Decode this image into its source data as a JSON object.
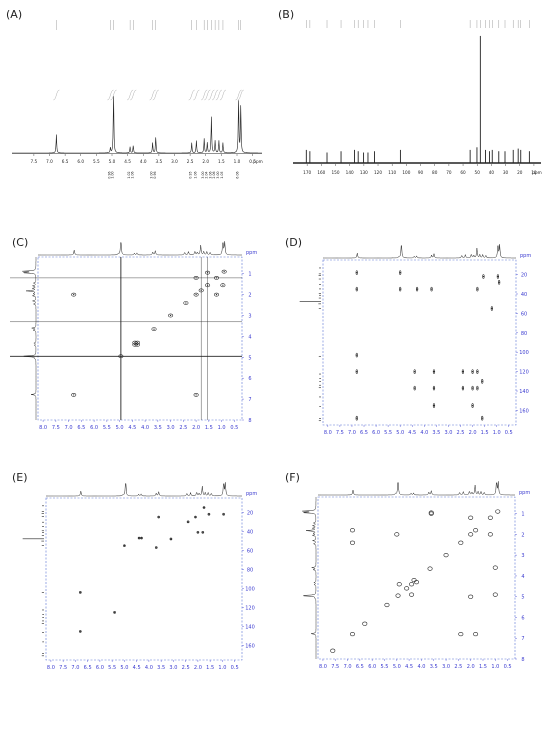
{
  "panels": [
    {
      "label": "(A)",
      "type": "1D-1H"
    },
    {
      "label": "(B)",
      "type": "1D-13C"
    },
    {
      "label": "(C)",
      "type": "2D-COSY"
    },
    {
      "label": "(D)",
      "type": "2D-HMBC"
    },
    {
      "label": "(E)",
      "type": "2D-HSQC"
    },
    {
      "label": "(F)",
      "type": "2D-NOESY"
    }
  ],
  "colors": {
    "ink": "#222222",
    "axis_blue": "#3a3ad0",
    "frame_dash": "#5a74d6"
  },
  "chart_data": [
    {
      "panel": "(A)",
      "type": "line",
      "title": "",
      "xlabel": "ppm",
      "x_reversed": true,
      "xlim": [
        8.2,
        0.2
      ],
      "x_ticks": [
        "7.5",
        "7.0",
        "6.5",
        "6.0",
        "5.5",
        "5.0",
        "4.5",
        "4.0",
        "3.5",
        "3.0",
        "2.5",
        "2.0",
        "1.5",
        "1.0",
        "0.5"
      ],
      "peaks": [
        {
          "ppm": 6.78,
          "height": 0.18
        },
        {
          "ppm": 5.05,
          "height": 0.05
        },
        {
          "ppm": 4.95,
          "height": 0.55
        },
        {
          "ppm": 4.42,
          "height": 0.06
        },
        {
          "ppm": 4.32,
          "height": 0.07
        },
        {
          "ppm": 3.7,
          "height": 0.1
        },
        {
          "ppm": 3.6,
          "height": 0.15
        },
        {
          "ppm": 2.45,
          "height": 0.1
        },
        {
          "ppm": 2.3,
          "height": 0.12
        },
        {
          "ppm": 2.05,
          "height": 0.14
        },
        {
          "ppm": 1.95,
          "height": 0.1
        },
        {
          "ppm": 1.82,
          "height": 0.35
        },
        {
          "ppm": 1.7,
          "height": 0.12
        },
        {
          "ppm": 1.58,
          "height": 0.12
        },
        {
          "ppm": 1.45,
          "height": 0.1
        },
        {
          "ppm": 0.95,
          "height": 0.5
        },
        {
          "ppm": 0.88,
          "height": 0.45
        }
      ],
      "integrations": [
        "0.96",
        "1.00",
        "1.02",
        "1.06",
        "3.00",
        "0.96",
        "0.95",
        "1.06",
        "3.00",
        "2.04",
        "3.06",
        "2.06",
        "3.00",
        "1.05",
        "6.06"
      ]
    },
    {
      "panel": "(B)",
      "type": "line",
      "title": "",
      "xlabel": "ppm",
      "x_reversed": true,
      "xlim": [
        180,
        5
      ],
      "x_ticks": [
        "170",
        "160",
        "150",
        "140",
        "130",
        "120",
        "110",
        "100",
        "90",
        "80",
        "70",
        "60",
        "50",
        "40",
        "30",
        "20",
        "10"
      ],
      "peaks": [
        {
          "ppm": 170.6,
          "height": 0.1
        },
        {
          "ppm": 168.1,
          "height": 0.09
        },
        {
          "ppm": 156.0,
          "height": 0.08
        },
        {
          "ppm": 146.1,
          "height": 0.09
        },
        {
          "ppm": 136.6,
          "height": 0.1
        },
        {
          "ppm": 134.0,
          "height": 0.09
        },
        {
          "ppm": 130.2,
          "height": 0.08
        },
        {
          "ppm": 127.1,
          "height": 0.08
        },
        {
          "ppm": 122.5,
          "height": 0.09
        },
        {
          "ppm": 104.2,
          "height": 0.1
        },
        {
          "ppm": 55.0,
          "height": 0.1
        },
        {
          "ppm": 50.2,
          "height": 0.12
        },
        {
          "ppm": 47.8,
          "height": 0.97
        },
        {
          "ppm": 44.2,
          "height": 0.1
        },
        {
          "ppm": 41.3,
          "height": 0.09
        },
        {
          "ppm": 39.4,
          "height": 0.1
        },
        {
          "ppm": 34.8,
          "height": 0.09
        },
        {
          "ppm": 30.4,
          "height": 0.09
        },
        {
          "ppm": 24.6,
          "height": 0.1
        },
        {
          "ppm": 21.1,
          "height": 0.11
        },
        {
          "ppm": 19.3,
          "height": 0.1
        },
        {
          "ppm": 13.2,
          "height": 0.09
        }
      ]
    },
    {
      "panel": "(C)",
      "type": "scatter",
      "title": "",
      "xlabel": "",
      "ylabel": "ppm",
      "xlim": [
        8.2,
        0.2
      ],
      "ylim": [
        0.2,
        8.0
      ],
      "x_ticks": [
        "8.0",
        "7.5",
        "7.0",
        "6.5",
        "6.0",
        "5.5",
        "5.0",
        "4.5",
        "4.0",
        "3.5",
        "3.0",
        "2.5",
        "2.0",
        "1.5",
        "1.0",
        "0.5"
      ],
      "y_ticks": [
        "1",
        "2",
        "3",
        "4",
        "5",
        "6",
        "7",
        "8"
      ],
      "cross_peaks": [
        {
          "x": 6.8,
          "y": 6.8
        },
        {
          "x": 4.95,
          "y": 4.95
        },
        {
          "x": 4.4,
          "y": 4.4
        },
        {
          "x": 4.3,
          "y": 4.3
        },
        {
          "x": 3.65,
          "y": 3.65
        },
        {
          "x": 3.0,
          "y": 3.0
        },
        {
          "x": 2.4,
          "y": 2.4
        },
        {
          "x": 2.0,
          "y": 2.0
        },
        {
          "x": 1.8,
          "y": 1.8
        },
        {
          "x": 1.55,
          "y": 1.55
        },
        {
          "x": 1.2,
          "y": 1.2
        },
        {
          "x": 0.9,
          "y": 0.9
        },
        {
          "x": 4.4,
          "y": 4.3
        },
        {
          "x": 4.3,
          "y": 4.4
        },
        {
          "x": 2.0,
          "y": 1.2
        },
        {
          "x": 1.2,
          "y": 2.0
        },
        {
          "x": 6.8,
          "y": 2.0
        },
        {
          "x": 2.0,
          "y": 6.8
        },
        {
          "x": 0.95,
          "y": 1.55
        },
        {
          "x": 1.55,
          "y": 0.95
        }
      ]
    },
    {
      "panel": "(D)",
      "type": "scatter",
      "title": "",
      "xlabel": "",
      "ylabel": "ppm",
      "xlim": [
        8.2,
        0.2
      ],
      "ylim": [
        5,
        175
      ],
      "x_ticks": [
        "8.0",
        "7.5",
        "7.0",
        "6.5",
        "6.0",
        "5.5",
        "5.0",
        "4.5",
        "4.0",
        "3.5",
        "3.0",
        "2.5",
        "2.0",
        "1.5",
        "1.0",
        "0.5"
      ],
      "y_ticks": [
        "20",
        "40",
        "60",
        "80",
        "100",
        "120",
        "140",
        "160"
      ],
      "cross_peaks": [
        {
          "x": 6.8,
          "y": 18
        },
        {
          "x": 6.8,
          "y": 35
        },
        {
          "x": 6.8,
          "y": 103
        },
        {
          "x": 6.8,
          "y": 120
        },
        {
          "x": 6.8,
          "y": 168
        },
        {
          "x": 5.0,
          "y": 18
        },
        {
          "x": 5.0,
          "y": 35
        },
        {
          "x": 4.3,
          "y": 35
        },
        {
          "x": 3.7,
          "y": 35
        },
        {
          "x": 3.6,
          "y": 120
        },
        {
          "x": 3.6,
          "y": 137
        },
        {
          "x": 3.6,
          "y": 155
        },
        {
          "x": 4.4,
          "y": 120
        },
        {
          "x": 4.4,
          "y": 137
        },
        {
          "x": 2.4,
          "y": 120
        },
        {
          "x": 2.4,
          "y": 137
        },
        {
          "x": 2.0,
          "y": 120
        },
        {
          "x": 2.0,
          "y": 137
        },
        {
          "x": 2.0,
          "y": 155
        },
        {
          "x": 1.8,
          "y": 120
        },
        {
          "x": 1.8,
          "y": 137
        },
        {
          "x": 1.6,
          "y": 130
        },
        {
          "x": 1.6,
          "y": 168
        },
        {
          "x": 1.8,
          "y": 35
        },
        {
          "x": 1.55,
          "y": 22
        },
        {
          "x": 0.95,
          "y": 22
        },
        {
          "x": 0.9,
          "y": 28
        },
        {
          "x": 1.2,
          "y": 55
        }
      ]
    },
    {
      "panel": "(E)",
      "type": "scatter",
      "title": "",
      "xlabel": "",
      "ylabel": "ppm",
      "xlim": [
        8.2,
        0.2
      ],
      "ylim": [
        5,
        175
      ],
      "x_ticks": [
        "8.0",
        "7.5",
        "7.0",
        "6.5",
        "6.0",
        "5.5",
        "5.0",
        "4.5",
        "4.0",
        "3.5",
        "3.0",
        "2.5",
        "2.0",
        "1.5",
        "1.0",
        "0.5"
      ],
      "y_ticks": [
        "20",
        "40",
        "60",
        "80",
        "100",
        "120",
        "140",
        "160"
      ],
      "cross_peaks": [
        {
          "x": 6.8,
          "y": 104
        },
        {
          "x": 6.8,
          "y": 145
        },
        {
          "x": 5.4,
          "y": 125
        },
        {
          "x": 5.0,
          "y": 55
        },
        {
          "x": 4.4,
          "y": 47
        },
        {
          "x": 4.3,
          "y": 47
        },
        {
          "x": 3.7,
          "y": 57
        },
        {
          "x": 3.6,
          "y": 25
        },
        {
          "x": 3.1,
          "y": 48
        },
        {
          "x": 2.4,
          "y": 30
        },
        {
          "x": 2.0,
          "y": 41
        },
        {
          "x": 1.8,
          "y": 41
        },
        {
          "x": 2.1,
          "y": 25
        },
        {
          "x": 1.75,
          "y": 15
        },
        {
          "x": 1.55,
          "y": 22
        },
        {
          "x": 0.95,
          "y": 22
        }
      ]
    },
    {
      "panel": "(F)",
      "type": "scatter",
      "title": "",
      "xlabel": "",
      "ylabel": "ppm",
      "xlim": [
        8.2,
        0.2
      ],
      "ylim": [
        0.2,
        8.0
      ],
      "x_ticks": [
        "8.0",
        "7.5",
        "7.0",
        "6.5",
        "6.0",
        "5.5",
        "5.0",
        "4.5",
        "4.0",
        "3.5",
        "3.0",
        "2.5",
        "2.0",
        "1.5",
        "1.0",
        "0.5"
      ],
      "y_ticks": [
        "1",
        "2",
        "3",
        "4",
        "5",
        "6",
        "7",
        "8"
      ],
      "cross_peaks": [
        {
          "x": 7.6,
          "y": 7.6
        },
        {
          "x": 6.8,
          "y": 6.8
        },
        {
          "x": 6.3,
          "y": 6.3
        },
        {
          "x": 5.4,
          "y": 5.4
        },
        {
          "x": 4.95,
          "y": 4.95
        },
        {
          "x": 4.6,
          "y": 4.6
        },
        {
          "x": 4.4,
          "y": 4.4
        },
        {
          "x": 3.65,
          "y": 3.65
        },
        {
          "x": 3.0,
          "y": 3.0
        },
        {
          "x": 2.4,
          "y": 2.4
        },
        {
          "x": 2.0,
          "y": 2.0
        },
        {
          "x": 1.8,
          "y": 1.8
        },
        {
          "x": 1.2,
          "y": 1.2
        },
        {
          "x": 0.9,
          "y": 0.9
        },
        {
          "x": 4.9,
          "y": 4.4
        },
        {
          "x": 4.4,
          "y": 4.9
        },
        {
          "x": 4.3,
          "y": 4.2
        },
        {
          "x": 4.2,
          "y": 4.3
        },
        {
          "x": 6.8,
          "y": 2.4
        },
        {
          "x": 2.4,
          "y": 6.8
        },
        {
          "x": 6.8,
          "y": 1.8
        },
        {
          "x": 1.8,
          "y": 6.8
        },
        {
          "x": 5.0,
          "y": 2.0
        },
        {
          "x": 2.0,
          "y": 5.0
        },
        {
          "x": 3.6,
          "y": 1.0
        },
        {
          "x": 1.0,
          "y": 3.6
        },
        {
          "x": 3.6,
          "y": 0.95
        },
        {
          "x": 1.0,
          "y": 4.9
        },
        {
          "x": 2.0,
          "y": 1.2
        },
        {
          "x": 1.2,
          "y": 2.0
        }
      ]
    }
  ]
}
